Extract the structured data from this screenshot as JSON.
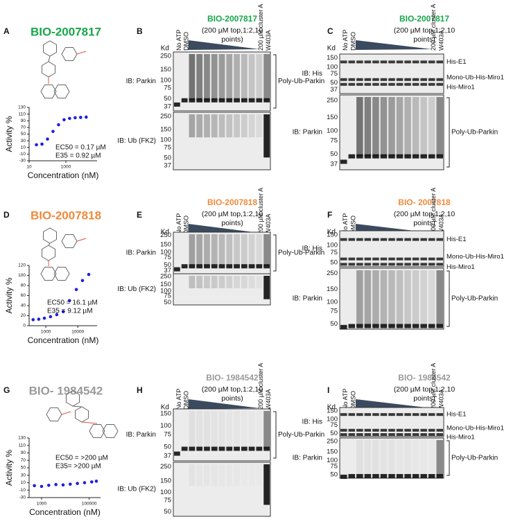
{
  "rows": [
    {
      "compound": {
        "label": "A",
        "title": "BIO-2007817",
        "title_color": "#17a64a"
      },
      "blots": [
        {
          "label": "B",
          "title": "BIO-2007817",
          "title_color": "#17a64a",
          "subtitle_lines": [
            "(200 µM top,1:2,10",
            "points)"
          ],
          "kd": "Kd",
          "lanes_left": [
            "No ATP",
            "DMSO"
          ],
          "lanes_right": [
            "200 µM cluster A",
            "W403A"
          ],
          "membranes": [
            {
              "ib": "IB: Parkin",
              "markers": [
                "250",
                "150",
                "100",
                "75",
                "50",
                "37"
              ],
              "right": [
                "Poly-Ub-Parkin"
              ]
            },
            {
              "ib": "IB: Ub (FK2)",
              "markers": [
                "250",
                "150",
                "100",
                "75",
                "50",
                "37"
              ],
              "right": []
            }
          ]
        },
        {
          "label": "C",
          "title": "BIO-2007817",
          "title_color": "#17a64a",
          "subtitle_lines": [
            "(200 µM top,1:2,10",
            "points)"
          ],
          "kd": "Kd",
          "lanes_left": [
            "No ATP",
            "DMSO"
          ],
          "lanes_right": [
            "200 µM cluster A",
            "W403A"
          ],
          "membranes": [
            {
              "ib": "IB: His",
              "markers": [
                "150",
                "100",
                "75",
                "50",
                "37"
              ],
              "right": [
                "His-E1",
                "Mono-Ub-His-Miro1",
                "His-Miro1"
              ]
            },
            {
              "ib": "IB: Parkin",
              "markers": [
                "250",
                "150",
                "100",
                "75",
                "50",
                "37"
              ],
              "right": [
                "Poly-Ub-Parkin"
              ]
            }
          ]
        }
      ]
    },
    {
      "compound": {
        "label": "D",
        "title": "BIO-2007818",
        "title_color": "#f08a3c"
      },
      "blots": [
        {
          "label": "E",
          "title": "BIO-2007818",
          "title_color": "#f08a3c",
          "subtitle_lines": [
            "(200 µM top,1:2,10",
            "points)"
          ],
          "kd": "Kd",
          "lanes_left": [
            "No ATP",
            "DMSO"
          ],
          "lanes_right": [
            "200 µM cluster A",
            "W403A"
          ],
          "membranes": [
            {
              "ib": "IB: Parkin",
              "markers": [
                "250",
                "150",
                "100",
                "75",
                "50",
                "37"
              ],
              "right": [
                "Poly-Ub-Parkin"
              ]
            },
            {
              "ib": "IB: Ub (FK2)",
              "markers": [
                "250",
                "150",
                "100",
                "75",
                "50"
              ],
              "right": []
            }
          ]
        },
        {
          "label": "F",
          "title": "BIO- 2007818",
          "title_color": "#f08a3c",
          "subtitle_lines": [
            "(200 µM top,1:2,10",
            "points)"
          ],
          "kd": "Kd",
          "lanes_left": [
            "No ATP",
            "DMSO"
          ],
          "lanes_right": [
            "200 µM cluster A",
            "W403A"
          ],
          "membranes": [
            {
              "ib": "IB: His",
              "markers": [
                "150",
                "100",
                "75",
                "50"
              ],
              "right": [
                "His-E1",
                "Mono-Ub-His-Miro1",
                "His-Miro1"
              ]
            },
            {
              "ib": "IB: Parkin",
              "markers": [
                "250",
                "150",
                "100",
                "75",
                "50"
              ],
              "right": [
                "Poly-Ub-Parkin"
              ]
            }
          ]
        }
      ]
    },
    {
      "compound": {
        "label": "G",
        "title": "BIO- 1984542",
        "title_color": "#9a9a9a"
      },
      "blots": [
        {
          "label": "H",
          "title": "BIO- 1984542",
          "title_color": "#9a9a9a",
          "subtitle_lines": [
            "(200 µM top,1:2,10",
            "points)"
          ],
          "kd": "Kd",
          "lanes_left": [
            "No ATP",
            "DMSO"
          ],
          "lanes_right": [
            "200 µM cluster A",
            "W403A"
          ],
          "membranes": [
            {
              "ib": "IB: Parkin",
              "markers": [
                "150",
                "100",
                "75",
                "50",
                "37"
              ],
              "right": [
                "Poly-Ub-Parkin"
              ]
            },
            {
              "ib": "IB: Ub (FK2)",
              "markers": [
                "250",
                "150",
                "100",
                "75",
                "50"
              ],
              "right": []
            }
          ]
        },
        {
          "label": "I",
          "title": "BIO- 1984542",
          "title_color": "#9a9a9a",
          "subtitle_lines": [
            "(200 µM top,1:2,10",
            "points)"
          ],
          "kd": "Kd",
          "lanes_left": [
            "No ATP",
            "DMSO"
          ],
          "lanes_right": [
            "200 µM cluster A",
            "W403A"
          ],
          "membranes": [
            {
              "ib": "IB: His",
              "markers": [
                "150",
                "100",
                "75",
                "50"
              ],
              "right": [
                "His-E1",
                "Mono-Ub-His-Miro1",
                "His-Miro1"
              ]
            },
            {
              "ib": "IB: Parkin",
              "markers": [
                "250",
                "150",
                "100",
                "75",
                "50"
              ],
              "right": [
                "Poly-Ub-Parkin"
              ]
            }
          ]
        }
      ]
    }
  ],
  "chart_data": [
    {
      "type": "scatter",
      "xlabel": "Concentration (nM)",
      "ylabel": "Activity %",
      "color": "#1f1fe0",
      "xlog": true,
      "x": [
        25,
        50,
        100,
        200,
        400,
        800,
        1600,
        3200,
        6400,
        12800
      ],
      "y": [
        18,
        20,
        35,
        58,
        78,
        93,
        97,
        99,
        100,
        101
      ],
      "xlim": [
        10,
        50000
      ],
      "xticks": [
        10,
        1000
      ],
      "ylim": [
        -30,
        130
      ],
      "yticks": [
        -30,
        -10,
        10,
        30,
        50,
        70,
        90,
        110,
        130
      ],
      "annotations": [
        "EC50 = 0.17 µM",
        "E35 = 0.92 µM"
      ]
    },
    {
      "type": "scatter",
      "xlabel": "Concentration (nM)",
      "ylabel": "Activity %",
      "color": "#1f1fe0",
      "xlog": true,
      "x": [
        400,
        600,
        900,
        1400,
        2200,
        3500,
        5500,
        9000,
        14000,
        22000
      ],
      "y": [
        12,
        13,
        15,
        18,
        22,
        28,
        50,
        72,
        90,
        102
      ],
      "xlim": [
        300,
        40000
      ],
      "xticks": [
        1000,
        10000
      ],
      "ylim": [
        0,
        120
      ],
      "yticks": [
        0,
        20,
        40,
        60,
        80,
        100,
        120
      ],
      "annotations": [
        "EC50 = 16.1 µM",
        "E35 = 9.12 µM"
      ]
    },
    {
      "type": "scatter",
      "xlabel": "Concentration (nM)",
      "ylabel": "Activity %",
      "color": "#1f1fe0",
      "xlog": true,
      "x": [
        500,
        1000,
        2000,
        4000,
        8000,
        16000,
        32000,
        64000,
        128000,
        200000
      ],
      "y": [
        2,
        0,
        3,
        5,
        4,
        6,
        8,
        10,
        12,
        14
      ],
      "xlim": [
        300,
        300000
      ],
      "xticks": [
        1000,
        100000
      ],
      "ylim": [
        -30,
        130
      ],
      "yticks": [
        -30,
        -10,
        10,
        30,
        50,
        70,
        90,
        110,
        130
      ],
      "annotations": [
        "EC50 = >200 µM",
        "E35= >200 µM"
      ]
    }
  ]
}
